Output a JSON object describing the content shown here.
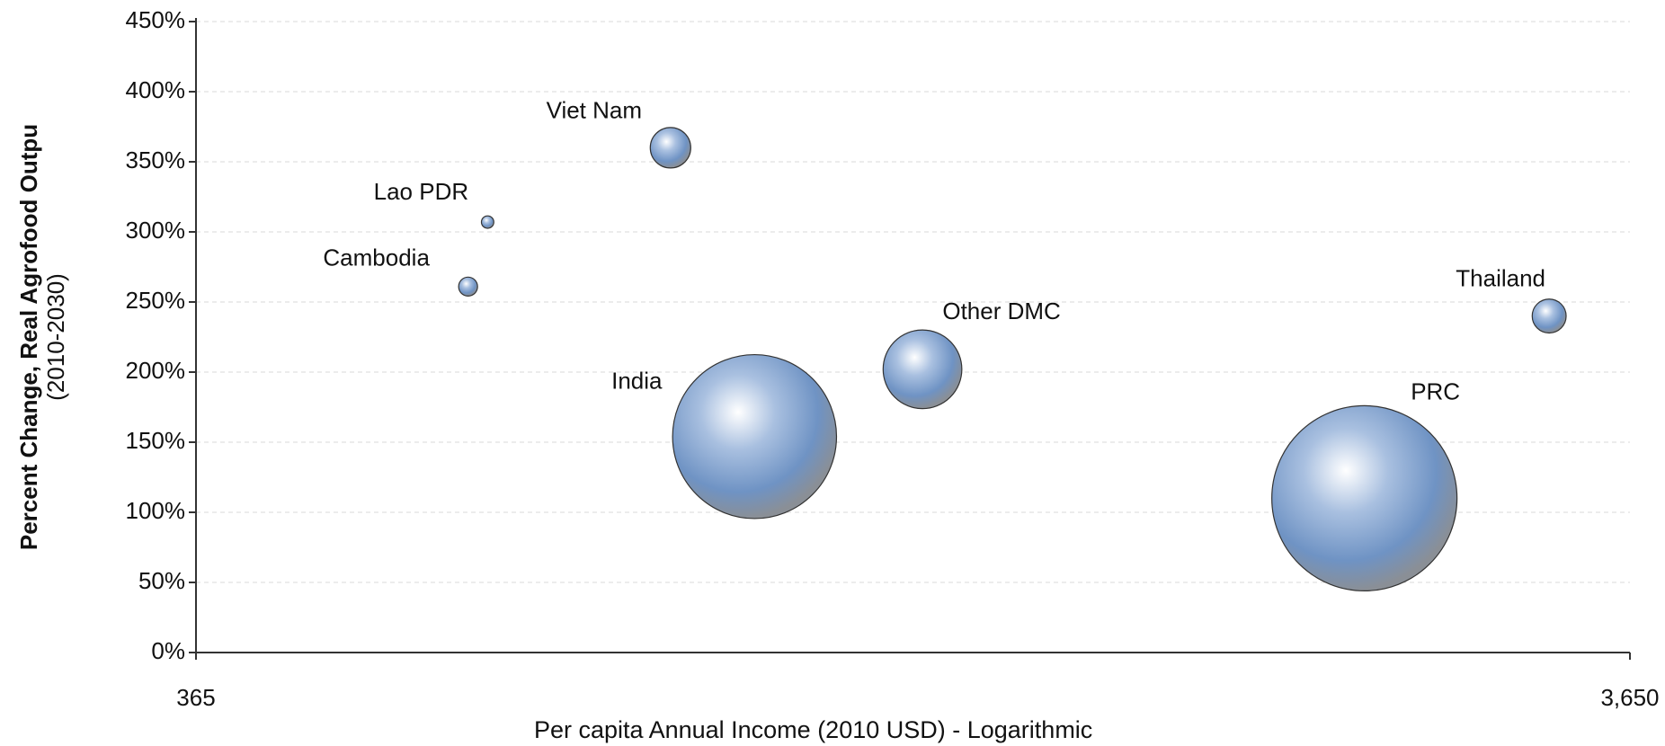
{
  "chart_data": {
    "type": "bubble",
    "y_label": "Percent Change, Real Agrofood Outpu",
    "y_label_sub": "(2010-2030)",
    "x_label": "Per capita Annual Income (2010 USD) - Logarithmic",
    "labels": [
      "Viet Nam",
      "Lao PDR",
      "Cambodia",
      "India",
      "Other DMC",
      "PRC",
      "Thailand"
    ],
    "x": [
      782,
      583,
      565,
      895,
      1172,
      2383,
      3206
    ],
    "y": [
      360,
      307,
      261,
      154,
      202,
      110,
      240
    ],
    "sizes": [
      64,
      6,
      14,
      1050,
      242,
      1340,
      45
    ],
    "color": "#6f93c4",
    "log_x": true,
    "grid": true,
    "xlim": [
      365,
      3650
    ],
    "xticks": [
      365,
      {
        "value": 3650,
        "label": "3,650"
      }
    ],
    "ylim": [
      0,
      450
    ],
    "yticks": [
      {
        "value": 0,
        "label": "0%"
      },
      {
        "value": 50,
        "label": "50%"
      },
      {
        "value": 100,
        "label": "100%"
      },
      {
        "value": 150,
        "label": "150%"
      },
      {
        "value": 200,
        "label": "200%"
      },
      {
        "value": 250,
        "label": "250%"
      },
      {
        "value": 300,
        "label": "300%"
      },
      {
        "value": 350,
        "label": "350%"
      },
      {
        "value": 400,
        "label": "400%"
      },
      {
        "value": 450,
        "label": "450%"
      }
    ]
  }
}
